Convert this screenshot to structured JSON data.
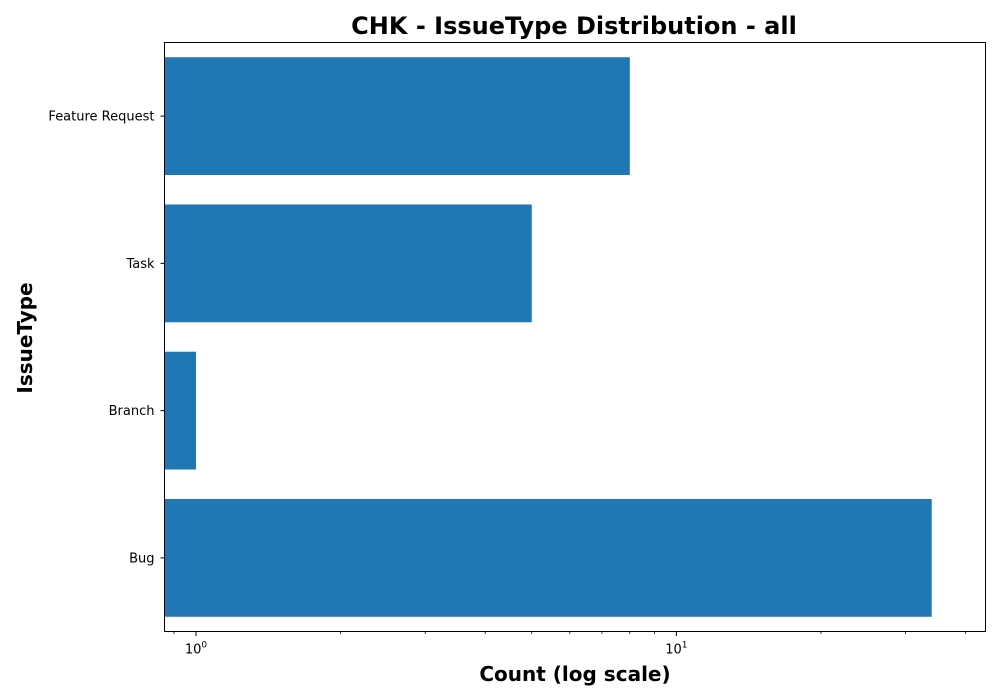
{
  "chart_data": {
    "type": "bar",
    "orientation": "horizontal",
    "title": "CHK - IssueType Distribution - all",
    "xlabel": "Count (log scale)",
    "ylabel": "IssueType",
    "x_scale": "log",
    "xlim": [
      0.86,
      44
    ],
    "categories": [
      "Bug",
      "Branch",
      "Task",
      "Feature Request"
    ],
    "values": [
      34,
      1,
      5,
      8
    ],
    "x_major_ticks": [
      {
        "base": "10",
        "exponent": "0",
        "value": 1
      },
      {
        "base": "10",
        "exponent": "1",
        "value": 10
      }
    ],
    "bar_color": "#1f77b4",
    "grid": false,
    "legend": false
  }
}
